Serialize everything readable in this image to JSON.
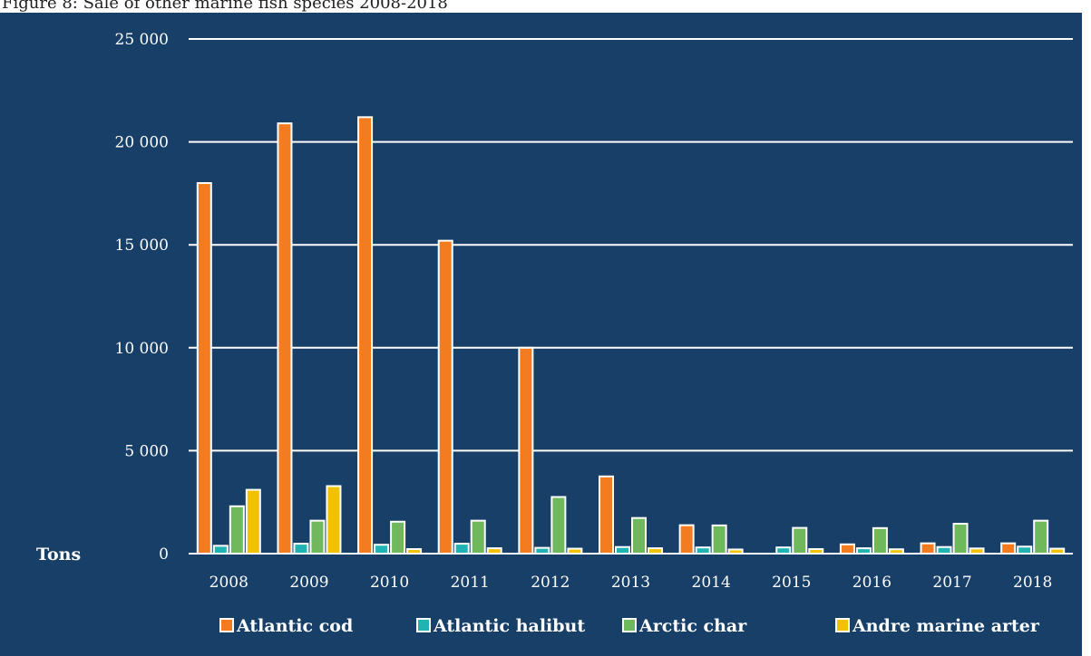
{
  "caption": "Figure 8: Sale of other marine fish species 2008-2018",
  "chart_data": {
    "type": "bar",
    "title": "Figure 8: Sale of other marine fish species 2008-2018",
    "ylabel": "Tons",
    "xlabel": "",
    "ylim": [
      0,
      25000
    ],
    "yticks": [
      0,
      5000,
      10000,
      15000,
      20000,
      25000
    ],
    "ytick_labels": [
      "0",
      "5 000",
      "10 000",
      "15 000",
      "20 000",
      "25 000"
    ],
    "categories": [
      "2008",
      "2009",
      "2010",
      "2011",
      "2012",
      "2013",
      "2014",
      "2015",
      "2016",
      "2017",
      "2018"
    ],
    "grid": true,
    "legend_position": "bottom",
    "series": [
      {
        "name": "Atlantic cod",
        "color": "#F47C20",
        "values": [
          18000,
          20900,
          21200,
          15200,
          10000,
          3750,
          1380,
          0,
          450,
          500,
          500
        ]
      },
      {
        "name": "Atlantic halibut",
        "color": "#1FB3B3",
        "values": [
          380,
          480,
          430,
          480,
          280,
          320,
          300,
          300,
          260,
          320,
          340
        ]
      },
      {
        "name": "Arctic char",
        "color": "#6FB85C",
        "values": [
          2300,
          1600,
          1550,
          1600,
          2750,
          1730,
          1370,
          1250,
          1240,
          1450,
          1600
        ]
      },
      {
        "name": "Andre marine arter",
        "color": "#F2C200",
        "values": [
          3100,
          3280,
          220,
          260,
          240,
          260,
          200,
          220,
          210,
          250,
          240
        ]
      }
    ]
  }
}
